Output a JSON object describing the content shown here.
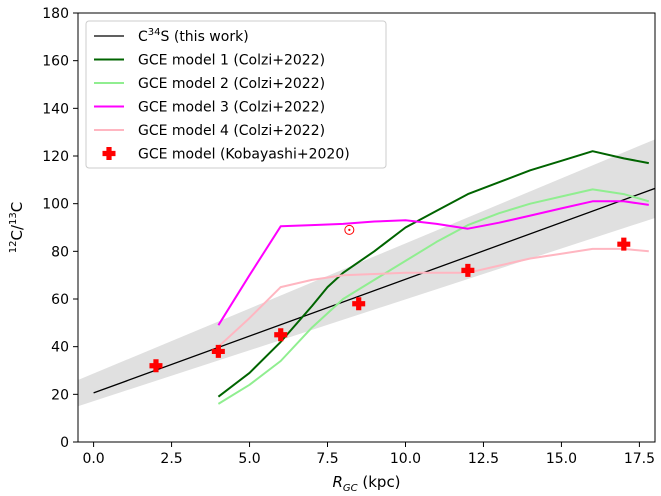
{
  "chart_data": {
    "type": "line",
    "xlabel": "R_GC (kpc)",
    "xlabel_main": "R",
    "xlabel_sub": "GC",
    "xlabel_unit": " (kpc)",
    "ylabel": "12C/13C",
    "ylabel_sup1": "12",
    "ylabel_mid": "C/",
    "ylabel_sup2": "13",
    "ylabel_end": "C",
    "xlim": [
      -0.5,
      18
    ],
    "ylim": [
      0,
      180
    ],
    "xticks": [
      0.0,
      2.5,
      5.0,
      7.5,
      10.0,
      12.5,
      15.0,
      17.5
    ],
    "xtick_labels": [
      "0.0",
      "2.5",
      "5.0",
      "7.5",
      "10.0",
      "12.5",
      "15.0",
      "17.5"
    ],
    "yticks": [
      0,
      20,
      40,
      60,
      80,
      100,
      120,
      140,
      160,
      180
    ],
    "ytick_labels": [
      "0",
      "20",
      "40",
      "60",
      "80",
      "100",
      "120",
      "140",
      "160",
      "180"
    ],
    "legend_position": "upper-left",
    "legend": [
      {
        "label": "C34S (this work)",
        "label_pre": "C",
        "label_sup": "34",
        "label_post": "S (this work)",
        "color": "#000000",
        "kind": "line"
      },
      {
        "label": "GCE model 1 (Colzi+2022)",
        "label_pre": "GCE model 1 (Colzi+2022)",
        "color": "#006400",
        "kind": "line"
      },
      {
        "label": "GCE model 2 (Colzi+2022)",
        "label_pre": "GCE model 2 (Colzi+2022)",
        "color": "#90ee90",
        "kind": "line"
      },
      {
        "label": "GCE model 3 (Colzi+2022)",
        "label_pre": "GCE model 3 (Colzi+2022)",
        "color": "#ff00ff",
        "kind": "line"
      },
      {
        "label": "GCE model 4 (Colzi+2022)",
        "label_pre": "GCE model 4 (Colzi+2022)",
        "color": "#ffb6c1",
        "kind": "line"
      },
      {
        "label": "GCE model (Kobayashi+2020)",
        "label_pre": "GCE model (Kobayashi+2020)",
        "color": "#ff0000",
        "kind": "marker"
      }
    ],
    "band": {
      "color": "#e0e0e0",
      "x": [
        -0.5,
        18
      ],
      "lower": [
        15,
        94
      ],
      "upper": [
        26,
        127
      ]
    },
    "fit_line": {
      "name": "C34S (this work)",
      "color": "#000000",
      "x": [
        0,
        18
      ],
      "y": [
        20.6,
        106.4
      ]
    },
    "series": [
      {
        "name": "GCE model 1 (Colzi+2022)",
        "color": "#006400",
        "x": [
          4,
          5,
          6,
          7,
          7.5,
          8,
          9,
          10,
          11,
          12,
          13,
          14,
          15,
          16,
          17,
          17.8
        ],
        "y": [
          19,
          29,
          42,
          57,
          65,
          71,
          80,
          90,
          97,
          104,
          109,
          114,
          118,
          122,
          119,
          117
        ]
      },
      {
        "name": "GCE model 2 (Colzi+2022)",
        "color": "#90ee90",
        "x": [
          4,
          5,
          6,
          7,
          8,
          9,
          10,
          11,
          12,
          13,
          14,
          15,
          16,
          17,
          17.8
        ],
        "y": [
          16,
          24,
          34,
          48,
          60,
          68,
          76,
          84,
          91,
          96,
          100,
          103,
          106,
          104,
          101
        ]
      },
      {
        "name": "GCE model 3 (Colzi+2022)",
        "color": "#ff00ff",
        "x": [
          4,
          5,
          6,
          7,
          8,
          9,
          10,
          11,
          12,
          13,
          14,
          15,
          16,
          17,
          17.8
        ],
        "y": [
          49,
          70,
          90.5,
          91,
          91.5,
          92.5,
          93,
          91.5,
          89.5,
          92,
          95,
          98,
          101,
          101,
          99.5
        ]
      },
      {
        "name": "GCE model 4 (Colzi+2022)",
        "color": "#ffb6c1",
        "x": [
          4,
          5,
          6,
          7,
          8,
          9,
          10,
          11,
          12,
          13,
          14,
          15,
          16,
          17,
          17.8
        ],
        "y": [
          40,
          52,
          65,
          68,
          70,
          70.5,
          71,
          71,
          71,
          74,
          77,
          79,
          81,
          81,
          80
        ]
      }
    ],
    "markers": {
      "name": "GCE model (Kobayashi+2020)",
      "color": "#ff0000",
      "x": [
        2,
        4,
        6,
        8.5,
        12,
        17
      ],
      "y": [
        32,
        38,
        45,
        58,
        72,
        83
      ]
    },
    "sun": {
      "x": 8.2,
      "y": 89,
      "color": "#ff0000"
    }
  }
}
